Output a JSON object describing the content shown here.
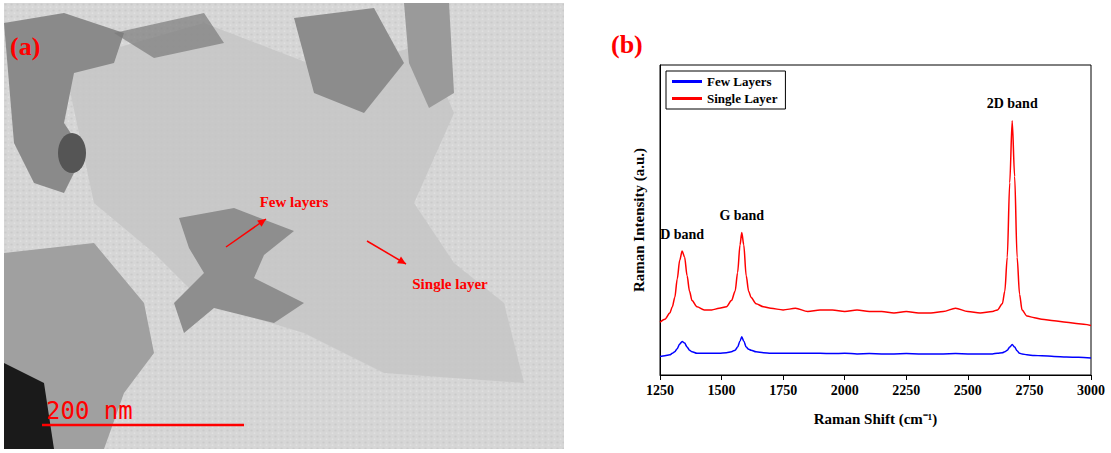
{
  "image_panel": {
    "label": "(a)",
    "annotations": [
      {
        "text": "Few layers"
      },
      {
        "text": "Single layer"
      }
    ],
    "scale_bar": "200 nm"
  },
  "chart_data": {
    "type": "line",
    "title": "(b)",
    "x_label": "Raman Shift (cm⁻¹)",
    "y_label": "Raman Intensity (a.u.)",
    "x": [
      1250,
      1270,
      1290,
      1300,
      1310,
      1320,
      1330,
      1340,
      1350,
      1360,
      1370,
      1380,
      1400,
      1430,
      1460,
      1490,
      1520,
      1540,
      1555,
      1565,
      1575,
      1582,
      1590,
      1600,
      1610,
      1620,
      1640,
      1670,
      1700,
      1750,
      1800,
      1850,
      1900,
      1950,
      2000,
      2050,
      2100,
      2150,
      2200,
      2250,
      2300,
      2350,
      2400,
      2450,
      2500,
      2550,
      2600,
      2620,
      2640,
      2650,
      2660,
      2670,
      2680,
      2690,
      2700,
      2710,
      2720,
      2740,
      2770,
      2800,
      2850,
      2900,
      2950,
      3000
    ],
    "series": [
      {
        "name": "Few Layers",
        "color": "#0000ff",
        "values": [
          6,
          6.2,
          6.5,
          7,
          7.5,
          8.5,
          10,
          10.8,
          10.3,
          9,
          8,
          7.5,
          7,
          7,
          7,
          7,
          7.2,
          7.5,
          8,
          9,
          11,
          12.3,
          11,
          9,
          8.3,
          8,
          7.5,
          7.2,
          7,
          7,
          7,
          7,
          7,
          6.9,
          7,
          6.8,
          6.9,
          6.8,
          6.8,
          6.9,
          6.8,
          6.8,
          6.8,
          6.9,
          6.8,
          6.8,
          6.8,
          7,
          7.2,
          7.5,
          8,
          9,
          9.8,
          9,
          7.8,
          7,
          6.8,
          6.5,
          6.3,
          6.2,
          6,
          5.8,
          5.7,
          5.5
        ]
      },
      {
        "name": "Single Layer",
        "color": "#ff0000",
        "values": [
          17,
          18,
          20,
          22,
          25,
          31,
          37,
          40,
          38,
          32,
          27,
          24,
          22,
          21,
          21,
          21.5,
          22,
          24,
          27,
          33,
          42,
          46,
          42,
          32,
          27,
          25,
          23,
          22,
          21.5,
          21,
          21.5,
          20.5,
          21,
          21,
          20.5,
          21,
          20.5,
          20.5,
          20,
          20.5,
          20,
          20,
          20.5,
          21.5,
          20.5,
          20,
          20.5,
          21,
          23,
          27,
          38,
          62,
          82,
          64,
          38,
          26,
          21,
          19,
          18.5,
          18,
          17.5,
          17,
          16.5,
          16
        ]
      }
    ],
    "annotations": [
      {
        "text": "D band",
        "x": 1340,
        "y": 40
      },
      {
        "text": "G band",
        "x": 1582,
        "y": 46
      },
      {
        "text": "2D band",
        "x": 2680,
        "y": 82
      }
    ],
    "xlim": [
      1250,
      3000
    ],
    "xticks": [
      1250,
      1500,
      1750,
      2000,
      2250,
      2500,
      2750,
      3000
    ],
    "ylim": [
      0,
      100
    ],
    "tick_labels": "x",
    "grid": false,
    "legend": "upper left"
  }
}
